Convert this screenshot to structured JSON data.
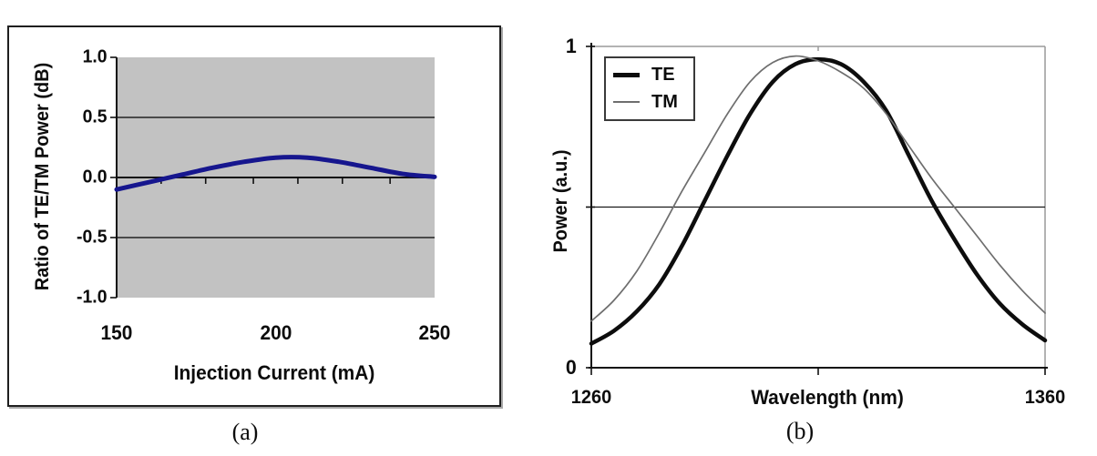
{
  "figure": {
    "caption_a": "(a)",
    "caption_b": "(b)",
    "background": "#ffffff"
  },
  "chart_data": [
    {
      "id": "a",
      "type": "line",
      "xlabel": "Injection Current (mA)",
      "ylabel": "Ratio of TE/TM Power (dB)",
      "xlim": [
        150,
        250
      ],
      "ylim": [
        -1.0,
        1.0
      ],
      "x_ticks": [
        150,
        200,
        250
      ],
      "x_tick_labels": [
        "150",
        "200",
        "250"
      ],
      "x_minor_ticks": [
        164,
        178,
        193,
        207,
        221,
        236
      ],
      "y_ticks": [
        1.0,
        0.5,
        0.0,
        -0.5,
        -1.0
      ],
      "y_tick_labels": [
        "1.0",
        "0.5",
        "0.0",
        "-0.5",
        "-1.0"
      ],
      "gridlines_y": [
        0.5,
        -0.5
      ],
      "zero_axis_y": 0.0,
      "grid": true,
      "legend": null,
      "colors": {
        "plot_bg": "#c2c2c2",
        "line": "#16168e",
        "axis": "#111111",
        "frame": "#1f1f1f"
      },
      "series": [
        {
          "name": "TE/TM power ratio",
          "x": [
            150,
            160,
            170,
            180,
            190,
            200,
            210,
            220,
            230,
            240,
            250
          ],
          "y": [
            -0.1,
            -0.04,
            0.02,
            0.08,
            0.13,
            0.165,
            0.165,
            0.13,
            0.08,
            0.03,
            0.005
          ]
        }
      ]
    },
    {
      "id": "b",
      "type": "line",
      "xlabel": "Wavelength (nm)",
      "ylabel": "Power (a.u.)",
      "xlim": [
        1260,
        1360
      ],
      "ylim": [
        0,
        1
      ],
      "x_ticks": [
        1260,
        1360
      ],
      "x_tick_labels": [
        "1260",
        "1360"
      ],
      "x_tick_marks": [
        1260,
        1310,
        1360
      ],
      "y_ticks": [
        1,
        0
      ],
      "y_tick_labels": [
        "1",
        "0"
      ],
      "y_tick_marks": [
        0,
        0.5,
        1
      ],
      "gridlines_y": [
        0.5
      ],
      "grid": true,
      "legend": {
        "position": "top-left",
        "entries": [
          "TE",
          "TM"
        ]
      },
      "colors": {
        "plot_bg": "#ffffff",
        "axis": "#111111",
        "light_border": "#9a9a9a",
        "te": "#0d0d0d",
        "tm": "#6e6e6e"
      },
      "series": [
        {
          "name": "TE",
          "x": [
            1260,
            1265,
            1270,
            1275,
            1280,
            1285,
            1290,
            1295,
            1300,
            1305,
            1310,
            1315,
            1320,
            1325,
            1330,
            1335,
            1340,
            1345,
            1350,
            1355,
            1360
          ],
          "y": [
            0.075,
            0.115,
            0.175,
            0.26,
            0.38,
            0.52,
            0.66,
            0.79,
            0.89,
            0.945,
            0.96,
            0.945,
            0.89,
            0.8,
            0.66,
            0.52,
            0.4,
            0.29,
            0.2,
            0.135,
            0.085
          ]
        },
        {
          "name": "TM",
          "x": [
            1260,
            1265,
            1270,
            1275,
            1280,
            1285,
            1290,
            1295,
            1300,
            1305,
            1310,
            1315,
            1320,
            1325,
            1330,
            1335,
            1340,
            1345,
            1350,
            1355,
            1360
          ],
          "y": [
            0.145,
            0.21,
            0.3,
            0.42,
            0.55,
            0.67,
            0.79,
            0.89,
            0.95,
            0.97,
            0.955,
            0.92,
            0.87,
            0.79,
            0.69,
            0.59,
            0.5,
            0.41,
            0.32,
            0.24,
            0.17
          ]
        }
      ]
    }
  ]
}
